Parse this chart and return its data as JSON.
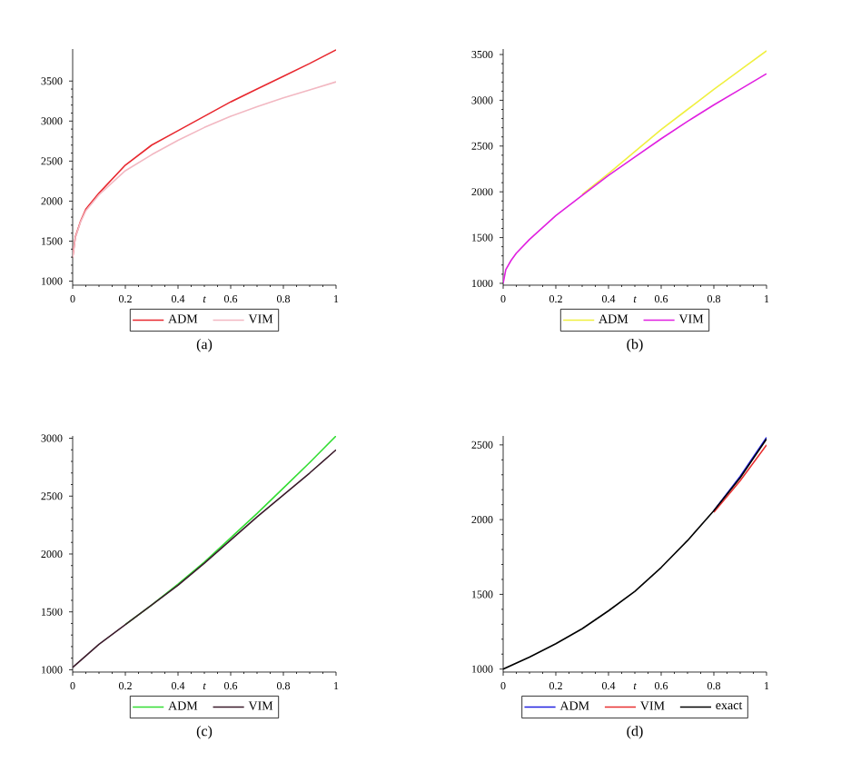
{
  "chart_data": [
    {
      "type": "line",
      "xlabel": "t",
      "x": [
        0,
        0.01,
        0.03,
        0.05,
        0.1,
        0.2,
        0.3,
        0.4,
        0.5,
        0.6,
        0.7,
        0.8,
        0.9,
        1
      ],
      "xlim": [
        0,
        1
      ],
      "ylim": [
        950,
        3900
      ],
      "xticks": [
        0,
        0.2,
        0.4,
        0.6,
        0.8,
        1
      ],
      "yticks": [
        1000,
        1500,
        2000,
        2500,
        3000,
        3500
      ],
      "legend": "bottom",
      "annotations": [
        "(a)"
      ],
      "series": [
        {
          "name": "ADM",
          "color": "#e8282f",
          "values": [
            1300,
            1550,
            1750,
            1900,
            2100,
            2450,
            2700,
            2880,
            3060,
            3240,
            3400,
            3560,
            3720,
            3890
          ]
        },
        {
          "name": "VIM",
          "color": "#f2b8c2",
          "values": [
            1300,
            1540,
            1740,
            1880,
            2080,
            2380,
            2580,
            2760,
            2920,
            3060,
            3180,
            3290,
            3390,
            3490
          ]
        }
      ]
    },
    {
      "type": "line",
      "xlabel": "t",
      "x": [
        0,
        0.01,
        0.03,
        0.05,
        0.1,
        0.2,
        0.3,
        0.4,
        0.5,
        0.6,
        0.7,
        0.8,
        0.9,
        1
      ],
      "xlim": [
        0,
        1
      ],
      "ylim": [
        980,
        3560
      ],
      "xticks": [
        0,
        0.2,
        0.4,
        0.6,
        0.8,
        1
      ],
      "yticks": [
        1000,
        1500,
        2000,
        2500,
        3000,
        3500
      ],
      "legend": "bottom",
      "annotations": [
        "(b)"
      ],
      "series": [
        {
          "name": "ADM",
          "color": "#f0f040",
          "values": [
            null,
            null,
            null,
            null,
            null,
            null,
            1970,
            2200,
            2440,
            2680,
            2900,
            3120,
            3330,
            3540
          ]
        },
        {
          "name": "VIM",
          "color": "#e020e0",
          "values": [
            1000,
            1150,
            1250,
            1330,
            1480,
            1740,
            1960,
            2180,
            2380,
            2580,
            2770,
            2950,
            3120,
            3290
          ]
        }
      ]
    },
    {
      "type": "line",
      "xlabel": "t",
      "x": [
        0,
        0.1,
        0.2,
        0.3,
        0.4,
        0.5,
        0.6,
        0.7,
        0.8,
        0.9,
        1
      ],
      "xlim": [
        0,
        1
      ],
      "ylim": [
        980,
        3020
      ],
      "xticks": [
        0,
        0.2,
        0.4,
        0.6,
        0.8,
        1
      ],
      "yticks": [
        1000,
        1500,
        2000,
        2500,
        3000
      ],
      "legend": "bottom",
      "annotations": [
        "(c)"
      ],
      "series": [
        {
          "name": "ADM",
          "color": "#33dd33",
          "values": [
            null,
            null,
            1390,
            1560,
            1740,
            1930,
            2140,
            2350,
            2570,
            2790,
            3020
          ]
        },
        {
          "name": "VIM",
          "color": "#3a1a2a",
          "values": [
            1020,
            1220,
            1390,
            1560,
            1730,
            1920,
            2120,
            2320,
            2510,
            2700,
            2900
          ]
        }
      ]
    },
    {
      "type": "line",
      "xlabel": "t",
      "x": [
        0,
        0.1,
        0.2,
        0.3,
        0.4,
        0.5,
        0.6,
        0.7,
        0.8,
        0.9,
        1
      ],
      "xlim": [
        0,
        1
      ],
      "ylim": [
        980,
        2560
      ],
      "xticks": [
        0,
        0.2,
        0.4,
        0.6,
        0.8,
        1
      ],
      "yticks": [
        1000,
        1500,
        2000,
        2500
      ],
      "legend": "bottom",
      "annotations": [
        "(d)"
      ],
      "series": [
        {
          "name": "ADM",
          "color": "#2020e0",
          "values": [
            null,
            null,
            null,
            null,
            null,
            null,
            null,
            null,
            2060,
            2290,
            2550
          ]
        },
        {
          "name": "VIM",
          "color": "#e83030",
          "values": [
            null,
            null,
            null,
            null,
            null,
            null,
            null,
            null,
            2050,
            2260,
            2500
          ]
        },
        {
          "name": "exact",
          "color": "#000000",
          "values": [
            1000,
            1080,
            1170,
            1270,
            1390,
            1520,
            1680,
            1860,
            2060,
            2280,
            2540
          ]
        }
      ]
    }
  ]
}
